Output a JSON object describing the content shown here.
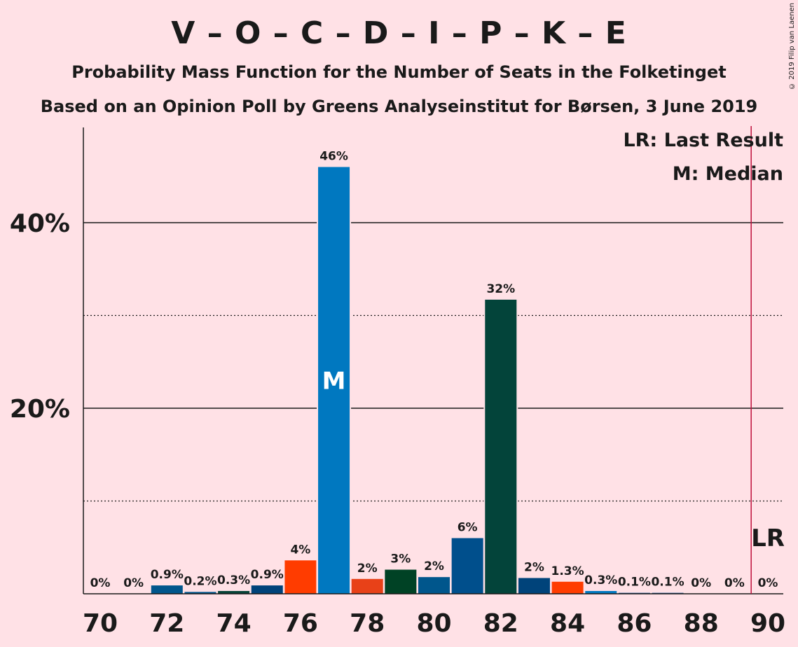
{
  "title": "V – O – C – D – I – P – K – E",
  "subtitle": "Probability Mass Function for the Number of Seats in the Folketinget",
  "subtitle2": "Based on an Opinion Poll by Greens Analyseinstitut for Børsen, 3 June 2019",
  "copyright": "© 2019 Filip van Laenen",
  "legend": {
    "last_result": "LR: Last Result",
    "median": "M: Median"
  },
  "chart_data": {
    "type": "bar",
    "title": "V – O – C – D – I – P – K – E",
    "xlabel": "",
    "ylabel": "",
    "ylim": [
      0,
      50
    ],
    "x_ticks": [
      "70",
      "72",
      "74",
      "76",
      "78",
      "80",
      "82",
      "84",
      "86",
      "88",
      "90"
    ],
    "y_ticks": [
      {
        "value": 20,
        "label": "20%"
      },
      {
        "value": 40,
        "label": "40%"
      }
    ],
    "dotted_gridlines": [
      10,
      30
    ],
    "seats": [
      70,
      71,
      72,
      73,
      74,
      75,
      76,
      77,
      78,
      79,
      80,
      81,
      82,
      83,
      84,
      85,
      86,
      87,
      88,
      89,
      90
    ],
    "values": [
      0,
      0,
      0.9,
      0.2,
      0.3,
      0.9,
      3.6,
      46,
      1.6,
      2.6,
      1.8,
      6,
      31.7,
      1.7,
      1.3,
      0.3,
      0.1,
      0.1,
      0,
      0,
      0
    ],
    "labels": [
      "0%",
      "0%",
      "0.9%",
      "0.2%",
      "0.3%",
      "0.9%",
      "4%",
      "46%",
      "2%",
      "3%",
      "2%",
      "6%",
      "32%",
      "2%",
      "1.3%",
      "0.3%",
      "0.1%",
      "0.1%",
      "0%",
      "0%",
      "0%"
    ],
    "colors": [
      "#0E4D8C",
      "#0E4D8C",
      "#00568C",
      "#00568C",
      "#074438",
      "#00437A",
      "#FF3C00",
      "#0078C0",
      "#E84118",
      "#004225",
      "#00568C",
      "#004F8C",
      "#03443A",
      "#00437A",
      "#FF3C00",
      "#0078C0",
      "#0E4D8C",
      "#0E4D8C",
      "#0E4D8C",
      "#0E4D8C",
      "#0E4D8C"
    ],
    "median_seat": 77,
    "median_label": "M",
    "last_result_seat": 89.5,
    "last_result_label": "LR",
    "lr_line_color": "#C0103C"
  }
}
